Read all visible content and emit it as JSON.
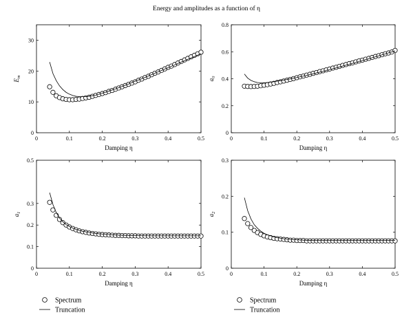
{
  "figure_title": "Energy and amplitudes as a function of η",
  "legend": [
    {
      "label": "Spectrum",
      "marker": "circle"
    },
    {
      "label": "Truncation",
      "marker": "line"
    }
  ],
  "chart_data": [
    {
      "type": "scatter",
      "ylabel": "E_m",
      "xlabel": "Damping η",
      "xlim": [
        0,
        0.5
      ],
      "ylim": [
        0,
        35
      ],
      "xticks": [
        "0",
        "0.1",
        "0.2",
        "0.3",
        "0.4",
        "0.5"
      ],
      "yticks": [
        "0",
        "10",
        "20",
        "30"
      ],
      "series": [
        {
          "name": "Spectrum",
          "style": "circles",
          "x": [
            0.04,
            0.05,
            0.06,
            0.07,
            0.08,
            0.09,
            0.1,
            0.11,
            0.12,
            0.13,
            0.14,
            0.15,
            0.16,
            0.17,
            0.18,
            0.19,
            0.2,
            0.21,
            0.22,
            0.23,
            0.24,
            0.25,
            0.26,
            0.27,
            0.28,
            0.29,
            0.3,
            0.31,
            0.32,
            0.33,
            0.34,
            0.35,
            0.36,
            0.37,
            0.38,
            0.39,
            0.4,
            0.41,
            0.42,
            0.43,
            0.44,
            0.45,
            0.46,
            0.47,
            0.48,
            0.49,
            0.5
          ],
          "y": [
            14.9,
            13.1,
            12.0,
            11.4,
            11.0,
            10.8,
            10.7,
            10.7,
            10.8,
            10.9,
            11.1,
            11.3,
            11.5,
            11.8,
            12.1,
            12.4,
            12.7,
            13.0,
            13.4,
            13.7,
            14.1,
            14.5,
            14.9,
            15.3,
            15.7,
            16.1,
            16.5,
            17.0,
            17.4,
            17.9,
            18.3,
            18.8,
            19.3,
            19.7,
            20.2,
            20.7,
            21.2,
            21.6,
            22.1,
            22.6,
            23.1,
            23.6,
            24.1,
            24.6,
            25.1,
            25.6,
            26.1
          ]
        },
        {
          "name": "Truncation",
          "style": "line",
          "x": [
            0.04,
            0.05,
            0.06,
            0.07,
            0.08,
            0.09,
            0.1,
            0.11,
            0.12,
            0.13,
            0.14,
            0.15,
            0.16,
            0.18,
            0.2,
            0.22,
            0.24,
            0.26,
            0.28,
            0.3,
            0.32,
            0.34,
            0.36,
            0.38,
            0.4,
            0.42,
            0.44,
            0.46,
            0.48,
            0.5
          ],
          "y": [
            22.9,
            19.2,
            16.9,
            15.2,
            14.0,
            13.1,
            12.5,
            12.1,
            11.8,
            11.7,
            11.7,
            11.7,
            11.8,
            12.2,
            12.8,
            13.5,
            14.2,
            15.0,
            15.8,
            16.7,
            17.5,
            18.4,
            19.3,
            20.2,
            21.1,
            22.0,
            22.9,
            23.8,
            24.7,
            25.6
          ]
        }
      ]
    },
    {
      "type": "scatter",
      "ylabel": "a_0",
      "xlabel": "Damping η",
      "xlim": [
        0,
        0.5
      ],
      "ylim": [
        0,
        0.8
      ],
      "xticks": [
        "0",
        "0.1",
        "0.2",
        "0.3",
        "0.4",
        "0.5"
      ],
      "yticks": [
        "0",
        "0.2",
        "0.4",
        "0.6",
        "0.8"
      ],
      "series": [
        {
          "name": "Spectrum",
          "style": "circles",
          "x": [
            0.04,
            0.05,
            0.06,
            0.07,
            0.08,
            0.09,
            0.1,
            0.11,
            0.12,
            0.13,
            0.14,
            0.15,
            0.16,
            0.17,
            0.18,
            0.19,
            0.2,
            0.21,
            0.22,
            0.23,
            0.24,
            0.25,
            0.26,
            0.27,
            0.28,
            0.29,
            0.3,
            0.31,
            0.32,
            0.33,
            0.34,
            0.35,
            0.36,
            0.37,
            0.38,
            0.39,
            0.4,
            0.41,
            0.42,
            0.43,
            0.44,
            0.45,
            0.46,
            0.47,
            0.48,
            0.49,
            0.5
          ],
          "y": [
            0.345,
            0.343,
            0.342,
            0.343,
            0.345,
            0.348,
            0.352,
            0.356,
            0.361,
            0.366,
            0.372,
            0.377,
            0.383,
            0.389,
            0.395,
            0.401,
            0.408,
            0.414,
            0.42,
            0.427,
            0.433,
            0.44,
            0.446,
            0.453,
            0.459,
            0.466,
            0.472,
            0.479,
            0.485,
            0.492,
            0.499,
            0.505,
            0.512,
            0.518,
            0.525,
            0.532,
            0.538,
            0.545,
            0.551,
            0.558,
            0.565,
            0.571,
            0.578,
            0.585,
            0.591,
            0.598,
            0.61
          ]
        },
        {
          "name": "Truncation",
          "style": "line",
          "x": [
            0.04,
            0.05,
            0.06,
            0.07,
            0.08,
            0.09,
            0.1,
            0.11,
            0.12,
            0.13,
            0.14,
            0.16,
            0.18,
            0.2,
            0.22,
            0.24,
            0.26,
            0.28,
            0.3,
            0.32,
            0.34,
            0.36,
            0.38,
            0.4,
            0.42,
            0.44,
            0.46,
            0.48,
            0.5
          ],
          "y": [
            0.435,
            0.405,
            0.388,
            0.378,
            0.372,
            0.37,
            0.37,
            0.372,
            0.375,
            0.378,
            0.382,
            0.39,
            0.399,
            0.409,
            0.42,
            0.431,
            0.443,
            0.455,
            0.468,
            0.481,
            0.494,
            0.507,
            0.521,
            0.535,
            0.549,
            0.563,
            0.577,
            0.592,
            0.606
          ]
        }
      ]
    },
    {
      "type": "scatter",
      "ylabel": "a_1",
      "xlabel": "Damping η",
      "xlim": [
        0,
        0.5
      ],
      "ylim": [
        0,
        0.5
      ],
      "xticks": [
        "0",
        "0.1",
        "0.2",
        "0.3",
        "0.4",
        "0.5"
      ],
      "yticks": [
        "0",
        "0.1",
        "0.2",
        "0.3",
        "0.5"
      ],
      "series": [
        {
          "name": "Spectrum",
          "style": "circles",
          "x": [
            0.04,
            0.05,
            0.06,
            0.07,
            0.08,
            0.09,
            0.1,
            0.11,
            0.12,
            0.13,
            0.14,
            0.15,
            0.16,
            0.17,
            0.18,
            0.19,
            0.2,
            0.21,
            0.22,
            0.23,
            0.24,
            0.25,
            0.26,
            0.27,
            0.28,
            0.29,
            0.3,
            0.31,
            0.32,
            0.33,
            0.34,
            0.35,
            0.36,
            0.37,
            0.38,
            0.39,
            0.4,
            0.41,
            0.42,
            0.43,
            0.44,
            0.45,
            0.46,
            0.47,
            0.48,
            0.49,
            0.5
          ],
          "y": [
            0.305,
            0.27,
            0.245,
            0.226,
            0.211,
            0.2,
            0.191,
            0.184,
            0.178,
            0.173,
            0.169,
            0.166,
            0.163,
            0.161,
            0.159,
            0.157,
            0.156,
            0.155,
            0.154,
            0.153,
            0.152,
            0.152,
            0.151,
            0.151,
            0.15,
            0.15,
            0.15,
            0.149,
            0.149,
            0.149,
            0.149,
            0.149,
            0.149,
            0.149,
            0.149,
            0.149,
            0.149,
            0.149,
            0.149,
            0.149,
            0.149,
            0.149,
            0.149,
            0.149,
            0.149,
            0.149,
            0.149
          ]
        },
        {
          "name": "Truncation",
          "style": "line",
          "x": [
            0.04,
            0.05,
            0.06,
            0.07,
            0.08,
            0.09,
            0.1,
            0.11,
            0.12,
            0.13,
            0.14,
            0.16,
            0.18,
            0.2,
            0.22,
            0.25,
            0.3,
            0.35,
            0.4,
            0.45,
            0.5
          ],
          "y": [
            0.35,
            0.295,
            0.258,
            0.233,
            0.215,
            0.202,
            0.193,
            0.186,
            0.18,
            0.175,
            0.171,
            0.166,
            0.161,
            0.158,
            0.156,
            0.153,
            0.151,
            0.15,
            0.15,
            0.15,
            0.15
          ]
        }
      ]
    },
    {
      "type": "scatter",
      "ylabel": "a_2",
      "xlabel": "Damping η",
      "xlim": [
        0,
        0.5
      ],
      "ylim": [
        0,
        0.3
      ],
      "xticks": [
        "0",
        "0.1",
        "0.2",
        "0.3",
        "0.4",
        "0.5"
      ],
      "yticks": [
        "0",
        "0.1",
        "0.2",
        "0.3"
      ],
      "series": [
        {
          "name": "Spectrum",
          "style": "circles",
          "x": [
            0.04,
            0.05,
            0.06,
            0.07,
            0.08,
            0.09,
            0.1,
            0.11,
            0.12,
            0.13,
            0.14,
            0.15,
            0.16,
            0.17,
            0.18,
            0.19,
            0.2,
            0.21,
            0.22,
            0.23,
            0.24,
            0.25,
            0.26,
            0.27,
            0.28,
            0.29,
            0.3,
            0.31,
            0.32,
            0.33,
            0.34,
            0.35,
            0.36,
            0.37,
            0.38,
            0.39,
            0.4,
            0.41,
            0.42,
            0.43,
            0.44,
            0.45,
            0.46,
            0.47,
            0.48,
            0.49,
            0.5
          ],
          "y": [
            0.138,
            0.124,
            0.113,
            0.105,
            0.099,
            0.094,
            0.09,
            0.087,
            0.085,
            0.083,
            0.082,
            0.081,
            0.08,
            0.079,
            0.078,
            0.078,
            0.077,
            0.077,
            0.077,
            0.076,
            0.076,
            0.076,
            0.076,
            0.076,
            0.076,
            0.076,
            0.076,
            0.076,
            0.076,
            0.076,
            0.076,
            0.076,
            0.076,
            0.076,
            0.076,
            0.076,
            0.076,
            0.076,
            0.076,
            0.076,
            0.076,
            0.076,
            0.076,
            0.076,
            0.076,
            0.076,
            0.076
          ]
        },
        {
          "name": "Truncation",
          "style": "line",
          "x": [
            0.04,
            0.05,
            0.06,
            0.07,
            0.08,
            0.09,
            0.1,
            0.11,
            0.12,
            0.13,
            0.14,
            0.16,
            0.18,
            0.2,
            0.22,
            0.25,
            0.3,
            0.35,
            0.4,
            0.45,
            0.5
          ],
          "y": [
            0.196,
            0.16,
            0.137,
            0.121,
            0.111,
            0.103,
            0.097,
            0.093,
            0.09,
            0.087,
            0.085,
            0.082,
            0.08,
            0.079,
            0.078,
            0.077,
            0.077,
            0.077,
            0.077,
            0.077,
            0.077
          ]
        }
      ]
    }
  ]
}
